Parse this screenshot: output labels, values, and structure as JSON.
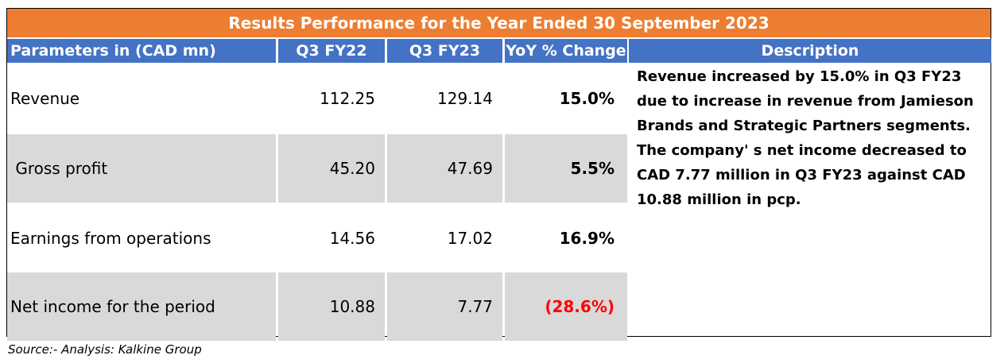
{
  "title": "Results Performance for the Year Ended 30 September 2023",
  "headers": {
    "parameters": "Parameters in (CAD mn)",
    "col1": "Q3 FY22",
    "col2": "Q3 FY23",
    "col3": "YoY % Change",
    "description": "Description"
  },
  "rows": [
    {
      "label": "Revenue",
      "q3fy22": "112.25",
      "q3fy23": "129.14",
      "yoy": "15.0%"
    },
    {
      "label": " Gross profit",
      "q3fy22": "45.20",
      "q3fy23": "47.69",
      "yoy": "5.5%"
    },
    {
      "label": "Earnings from operations",
      "q3fy22": "14.56",
      "q3fy23": "17.02",
      "yoy": "16.9%"
    },
    {
      "label": "Net income for the period",
      "q3fy22": "10.88",
      "q3fy23": "7.77",
      "yoy": "(28.6%)"
    }
  ],
  "description": {
    "para1": "Revenue increased by 15.0% in Q3 FY23 due to increase in revenue from Jamieson Brands and Strategic Partners segments.",
    "para2": "The company' s net income decreased to CAD 7.77 million in  Q3 FY23 against CAD 10.88 million in pcp."
  },
  "source": "Source:- Analysis: Kalkine Group",
  "colors": {
    "title_bg": "#ed7d31",
    "header_bg": "#4472c4",
    "shade": "#d9d9d9",
    "negative": "#ff0000"
  }
}
